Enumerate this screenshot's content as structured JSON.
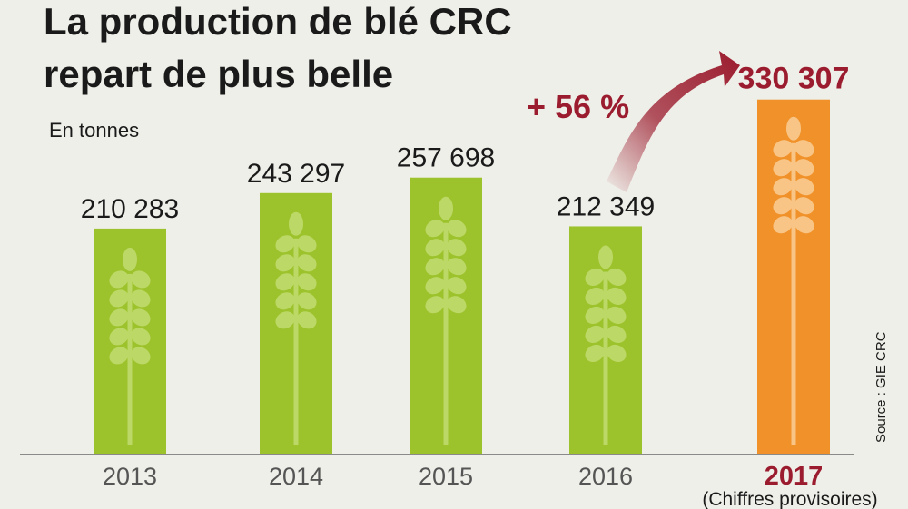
{
  "chart_data": {
    "type": "bar",
    "title_lines": [
      "La production de blé CRC",
      "repart de plus belle"
    ],
    "unit_label": "En tonnes",
    "categories": [
      "2013",
      "2014",
      "2015",
      "2016",
      "2017"
    ],
    "values": [
      210283,
      243297,
      257698,
      212349,
      330307
    ],
    "value_labels": [
      "210 283",
      "243 297",
      "257 698",
      "212 349",
      "330 307"
    ],
    "highlight_index": 4,
    "highlight_note": "(Chiffres provisoires)",
    "growth_label": "+ 56 %",
    "source": "Source : GIE CRC",
    "ylim": [
      0,
      390000
    ],
    "grid": false,
    "legend": "none",
    "colors": {
      "bar": "#9cc22c",
      "bar_highlight": "#f0912a",
      "wheat": "#bcd866",
      "wheat_highlight": "#f8c586",
      "accent": "#9b1c2e",
      "baseline": "#8a8a8a"
    },
    "icon": "wheat-ear-icon"
  }
}
